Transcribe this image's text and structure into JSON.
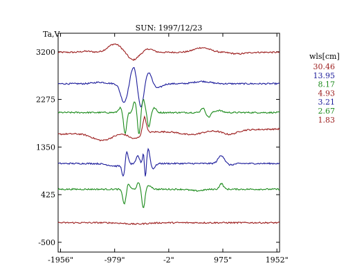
{
  "chart_data": {
    "type": "line",
    "title": "SUN: 1997/12/23",
    "ylabel": "Ta,V",
    "xlabel": "",
    "x_ticks": [
      {
        "value": -1956,
        "label": "-1956\""
      },
      {
        "value": -979,
        "label": "-979\""
      },
      {
        "value": -2,
        "label": "-2\""
      },
      {
        "value": 975,
        "label": "975\""
      },
      {
        "value": 1952,
        "label": "1952\""
      }
    ],
    "y_ticks": [
      {
        "value": 3200,
        "label": "3200"
      },
      {
        "value": 2275,
        "label": "2275"
      },
      {
        "value": 1350,
        "label": "1350"
      },
      {
        "value": 425,
        "label": "425"
      },
      {
        "value": -500,
        "label": "-500"
      }
    ],
    "xlim": [
      -2000,
      2000
    ],
    "ylim": [
      -690,
      3560
    ],
    "grid": false,
    "legend_title": "wls[cm]",
    "legend_position": "right",
    "series": [
      {
        "name": "30.46",
        "color": "#9b1b1b",
        "baseline": 3190,
        "features": [
          {
            "x": -1490,
            "amp": 20,
            "w": 130
          },
          {
            "x": -980,
            "amp": 160,
            "w": 170
          },
          {
            "x": -650,
            "amp": -150,
            "w": 130
          },
          {
            "x": -360,
            "amp": 65,
            "w": 110
          },
          {
            "x": 600,
            "amp": 90,
            "w": 200
          },
          {
            "x": 1250,
            "amp": -30,
            "w": 180
          }
        ]
      },
      {
        "name": "13.95",
        "color": "#1a1a9a",
        "baseline": 2580,
        "features": [
          {
            "x": -1250,
            "amp": 28,
            "w": 160
          },
          {
            "x": -810,
            "amp": -360,
            "w": 85
          },
          {
            "x": -640,
            "amp": 330,
            "w": 70
          },
          {
            "x": -505,
            "amp": -460,
            "w": 65
          },
          {
            "x": -360,
            "amp": 230,
            "w": 70
          },
          {
            "x": -200,
            "amp": -80,
            "w": 110
          },
          {
            "x": 600,
            "amp": 45,
            "w": 200
          }
        ]
      },
      {
        "name": "8.17",
        "color": "#1a8a1a",
        "baseline": 2020,
        "features": [
          {
            "x": -880,
            "amp": 90,
            "w": 45
          },
          {
            "x": -790,
            "amp": -420,
            "w": 38
          },
          {
            "x": -620,
            "amp": 220,
            "w": 38
          },
          {
            "x": -540,
            "amp": -430,
            "w": 32
          },
          {
            "x": -460,
            "amp": 260,
            "w": 38
          },
          {
            "x": -360,
            "amp": -280,
            "w": 35
          },
          {
            "x": -260,
            "amp": 90,
            "w": 45
          },
          {
            "x": 610,
            "amp": 90,
            "w": 45
          },
          {
            "x": 720,
            "amp": -90,
            "w": 45
          },
          {
            "x": 900,
            "amp": 40,
            "w": 90
          }
        ]
      },
      {
        "name": "4.93",
        "color": "#9b1b1b",
        "baseline": 1650,
        "slope": 0.025,
        "features": [
          {
            "x": -1200,
            "amp": -140,
            "w": 250
          },
          {
            "x": -620,
            "amp": -120,
            "w": 150
          },
          {
            "x": -440,
            "amp": 320,
            "w": 45
          },
          {
            "x": 400,
            "amp": -70,
            "w": 260
          },
          {
            "x": 1100,
            "amp": -80,
            "w": 180
          }
        ]
      },
      {
        "name": "3.21",
        "color": "#1a1a9a",
        "baseline": 1030,
        "features": [
          {
            "x": -950,
            "amp": -50,
            "w": 200
          },
          {
            "x": -820,
            "amp": -230,
            "w": 35
          },
          {
            "x": -760,
            "amp": 260,
            "w": 35
          },
          {
            "x": -560,
            "amp": 150,
            "w": 40
          },
          {
            "x": -440,
            "amp": 650,
            "w": 30
          },
          {
            "x": -430,
            "amp": -840,
            "w": 26
          },
          {
            "x": -370,
            "amp": 300,
            "w": 40
          },
          {
            "x": -290,
            "amp": -100,
            "w": 60
          },
          {
            "x": 950,
            "amp": 160,
            "w": 80
          },
          {
            "x": 1100,
            "amp": -30,
            "w": 100
          }
        ]
      },
      {
        "name": "2.67",
        "color": "#1a8a1a",
        "baseline": 530,
        "features": [
          {
            "x": -800,
            "amp": -300,
            "w": 45
          },
          {
            "x": -740,
            "amp": 130,
            "w": 45
          },
          {
            "x": -550,
            "amp": 120,
            "w": 40
          },
          {
            "x": -460,
            "amp": -380,
            "w": 35
          },
          {
            "x": -350,
            "amp": 70,
            "w": 60
          },
          {
            "x": 500,
            "amp": -30,
            "w": 160
          },
          {
            "x": 950,
            "amp": 110,
            "w": 50
          }
        ]
      },
      {
        "name": "1.83",
        "color": "#9b1b1b",
        "baseline": -120,
        "features": [
          {
            "x": -600,
            "amp": -25,
            "w": 280
          }
        ]
      }
    ]
  }
}
